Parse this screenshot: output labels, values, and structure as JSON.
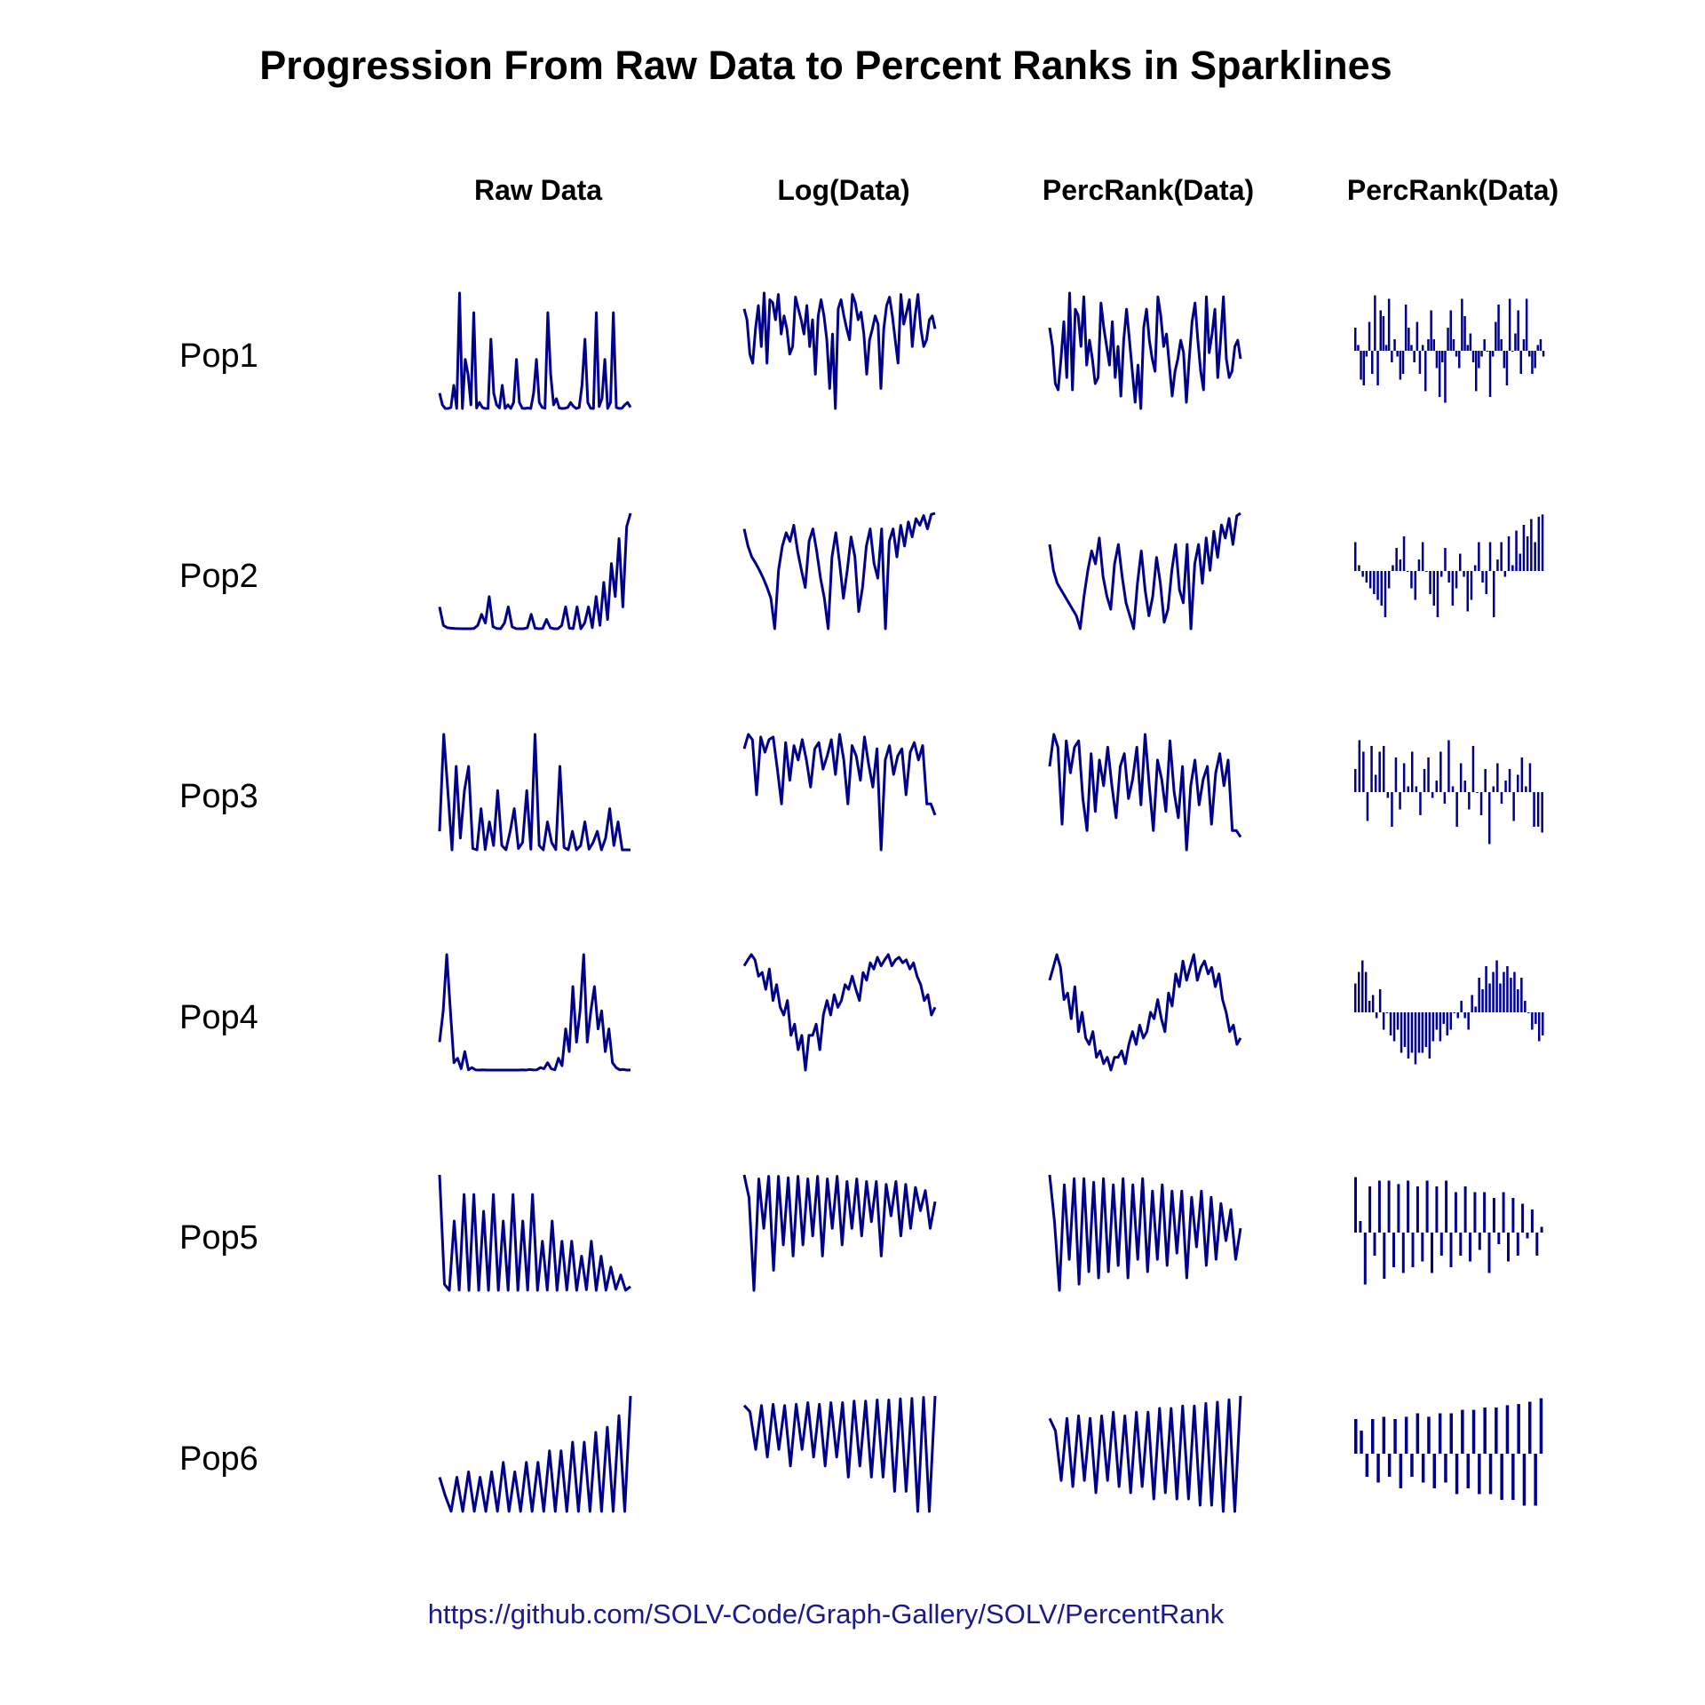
{
  "title": "Progression From Raw Data to Percent Ranks in Sparklines",
  "columns": [
    "Raw Data",
    "Log(Data)",
    "PercRank(Data)",
    "PercRank(Data)"
  ],
  "rows": [
    "Pop1",
    "Pop2",
    "Pop3",
    "Pop4",
    "Pop5",
    "Pop6"
  ],
  "source": "https://github.com/SOLV-Code/Graph-Gallery/SOLV/PercentRank",
  "colors": {
    "line": "#00008B",
    "text": "#000000",
    "source": "#1a1a8c"
  },
  "chart_data": {
    "type": "line",
    "layout": "small multiples grid (rows = populations, columns = transformations)",
    "column_types": [
      "line",
      "line",
      "line",
      "bar"
    ],
    "x": "time index (unlabeled)",
    "axes": "none",
    "grid": false,
    "note": "Sparkline shapes approximate; values are normalized series (0–1 for lines, -1..1 around median for bars).",
    "series": [
      {
        "name": "Pop1",
        "percrank": [
          0.7,
          0.55,
          0.25,
          0.2,
          0.45,
          0.75,
          0.3,
          0.98,
          0.2,
          0.85,
          0.8,
          0.55,
          0.95,
          0.4,
          0.6,
          0.45,
          0.25,
          0.3,
          0.9,
          0.7,
          0.55,
          0.4,
          0.75,
          0.3,
          0.55,
          0.15,
          0.6,
          0.85,
          0.6,
          0.35,
          0.1,
          0.4,
          0.05,
          0.7,
          0.85,
          0.6,
          0.45,
          0.35,
          0.95,
          0.8,
          0.55,
          0.65,
          0.4,
          0.15,
          0.35,
          0.45,
          0.6,
          0.5,
          0.1,
          0.45,
          0.75,
          0.9,
          0.6,
          0.35,
          0.2,
          0.95,
          0.5,
          0.65,
          0.85,
          0.3,
          0.6,
          0.95,
          0.45,
          0.3,
          0.35,
          0.55,
          0.6,
          0.45
        ]
      },
      {
        "name": "Pop2",
        "percrank": [
          0.75,
          0.55,
          0.45,
          0.4,
          0.35,
          0.3,
          0.25,
          0.2,
          0.1,
          0.35,
          0.55,
          0.7,
          0.6,
          0.8,
          0.5,
          0.35,
          0.25,
          0.6,
          0.75,
          0.5,
          0.3,
          0.2,
          0.1,
          0.45,
          0.7,
          0.4,
          0.2,
          0.35,
          0.65,
          0.45,
          0.15,
          0.25,
          0.55,
          0.75,
          0.4,
          0.3,
          0.75,
          0.1,
          0.6,
          0.75,
          0.45,
          0.8,
          0.55,
          0.85,
          0.65,
          0.9,
          0.8,
          0.95,
          0.75,
          0.97,
          0.99
        ]
      },
      {
        "name": "Pop3",
        "percrank": [
          0.7,
          0.95,
          0.85,
          0.25,
          0.9,
          0.65,
          0.85,
          0.9,
          0.45,
          0.2,
          0.8,
          0.35,
          0.75,
          0.55,
          0.85,
          0.55,
          0.3,
          0.7,
          0.8,
          0.45,
          0.6,
          0.85,
          0.4,
          0.95,
          0.55,
          0.2,
          0.75,
          0.6,
          0.35,
          0.9,
          0.5,
          0.3,
          0.7,
          0.05,
          0.55,
          0.75,
          0.4,
          0.6,
          0.7,
          0.25,
          0.65,
          0.8,
          0.55,
          0.75,
          0.2,
          0.2,
          0.15
        ]
      },
      {
        "name": "Pop4",
        "percrank": [
          0.75,
          0.85,
          0.95,
          0.85,
          0.6,
          0.65,
          0.45,
          0.7,
          0.35,
          0.5,
          0.3,
          0.25,
          0.35,
          0.15,
          0.2,
          0.1,
          0.15,
          0.05,
          0.15,
          0.15,
          0.2,
          0.1,
          0.25,
          0.35,
          0.25,
          0.4,
          0.3,
          0.35,
          0.5,
          0.45,
          0.6,
          0.45,
          0.35,
          0.65,
          0.55,
          0.8,
          0.7,
          0.9,
          0.75,
          0.85,
          0.95,
          0.75,
          0.85,
          0.9,
          0.8,
          0.85,
          0.7,
          0.8,
          0.6,
          0.5,
          0.35,
          0.4,
          0.25,
          0.3
        ]
      },
      {
        "name": "Pop5",
        "percrank": [
          0.98,
          0.6,
          0.05,
          0.9,
          0.3,
          0.95,
          0.1,
          0.95,
          0.2,
          0.92,
          0.15,
          0.95,
          0.2,
          0.9,
          0.25,
          0.95,
          0.15,
          0.9,
          0.3,
          0.95,
          0.2,
          0.85,
          0.3,
          0.9,
          0.25,
          0.85,
          0.35,
          0.85,
          0.15,
          0.8,
          0.4,
          0.85,
          0.25,
          0.8,
          0.3,
          0.75,
          0.45,
          0.7,
          0.3,
          0.55
        ]
      },
      {
        "name": "Pop6",
        "percrank": [
          0.8,
          0.7,
          0.3,
          0.8,
          0.25,
          0.82,
          0.3,
          0.8,
          0.2,
          0.82,
          0.3,
          0.85,
          0.25,
          0.82,
          0.2,
          0.85,
          0.25,
          0.85,
          0.15,
          0.88,
          0.2,
          0.88,
          0.15,
          0.9,
          0.15,
          0.9,
          0.1,
          0.92,
          0.1,
          0.93,
          0.05,
          0.95,
          0.05,
          0.98
        ]
      }
    ]
  }
}
